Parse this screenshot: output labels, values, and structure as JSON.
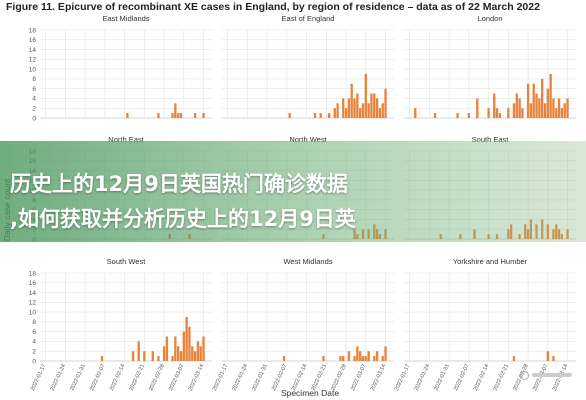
{
  "figure_title": "Figure 11. Epicurve of recombinant XE cases in England, by region of residence – data as of 22 March 2022",
  "overlay": {
    "line1": "历史上的12月9日英国热门确诊数据",
    "line2": ",如何获取并分析历史上的12月9日英"
  },
  "colors": {
    "bar": "#e8813a",
    "grid": "#e3e3e3",
    "axis": "#cccccc",
    "text": "#555555"
  },
  "chart_data": {
    "type": "bar",
    "ylabel": "Daily case count",
    "xlabel": "Specimen Date",
    "ylim": [
      0,
      18
    ],
    "yticks": [
      0,
      2,
      4,
      6,
      8,
      10,
      12,
      14,
      16,
      18
    ],
    "xticks": [
      "2022-01-17",
      "2022-01-24",
      "2022-01-31",
      "2022-02-07",
      "2022-02-14",
      "2022-02-21",
      "2022-02-28",
      "2022-03-07",
      "2022-03-14"
    ],
    "x_start": "2022-01-15",
    "x_end": "2022-03-17",
    "panels": [
      {
        "name": "East Midlands",
        "points": [
          {
            "date": "2022-02-15",
            "value": 1
          },
          {
            "date": "2022-02-26",
            "value": 1
          },
          {
            "date": "2022-03-03",
            "value": 1
          },
          {
            "date": "2022-03-04",
            "value": 3
          },
          {
            "date": "2022-03-05",
            "value": 1
          },
          {
            "date": "2022-03-06",
            "value": 1
          },
          {
            "date": "2022-03-11",
            "value": 1
          },
          {
            "date": "2022-03-14",
            "value": 1
          }
        ]
      },
      {
        "name": "East of England",
        "points": [
          {
            "date": "2022-02-08",
            "value": 1
          },
          {
            "date": "2022-02-17",
            "value": 1
          },
          {
            "date": "2022-02-19",
            "value": 1
          },
          {
            "date": "2022-02-22",
            "value": 1
          },
          {
            "date": "2022-02-24",
            "value": 2
          },
          {
            "date": "2022-02-25",
            "value": 3
          },
          {
            "date": "2022-02-27",
            "value": 4
          },
          {
            "date": "2022-02-28",
            "value": 2
          },
          {
            "date": "2022-03-01",
            "value": 4
          },
          {
            "date": "2022-03-02",
            "value": 7
          },
          {
            "date": "2022-03-03",
            "value": 4
          },
          {
            "date": "2022-03-04",
            "value": 5
          },
          {
            "date": "2022-03-05",
            "value": 2
          },
          {
            "date": "2022-03-06",
            "value": 3
          },
          {
            "date": "2022-03-07",
            "value": 9
          },
          {
            "date": "2022-03-08",
            "value": 3
          },
          {
            "date": "2022-03-09",
            "value": 5
          },
          {
            "date": "2022-03-10",
            "value": 5
          },
          {
            "date": "2022-03-11",
            "value": 4
          },
          {
            "date": "2022-03-12",
            "value": 2
          },
          {
            "date": "2022-03-13",
            "value": 3
          },
          {
            "date": "2022-03-14",
            "value": 6
          }
        ]
      },
      {
        "name": "London",
        "points": [
          {
            "date": "2022-01-19",
            "value": 2
          },
          {
            "date": "2022-01-26",
            "value": 1
          },
          {
            "date": "2022-02-03",
            "value": 1
          },
          {
            "date": "2022-02-07",
            "value": 1
          },
          {
            "date": "2022-02-10",
            "value": 4
          },
          {
            "date": "2022-02-14",
            "value": 2
          },
          {
            "date": "2022-02-16",
            "value": 5
          },
          {
            "date": "2022-02-17",
            "value": 2
          },
          {
            "date": "2022-02-18",
            "value": 1
          },
          {
            "date": "2022-02-21",
            "value": 2
          },
          {
            "date": "2022-02-23",
            "value": 3
          },
          {
            "date": "2022-02-24",
            "value": 5
          },
          {
            "date": "2022-02-25",
            "value": 4
          },
          {
            "date": "2022-02-26",
            "value": 2
          },
          {
            "date": "2022-02-28",
            "value": 7
          },
          {
            "date": "2022-03-01",
            "value": 3
          },
          {
            "date": "2022-03-02",
            "value": 7
          },
          {
            "date": "2022-03-03",
            "value": 5
          },
          {
            "date": "2022-03-04",
            "value": 4
          },
          {
            "date": "2022-03-05",
            "value": 8
          },
          {
            "date": "2022-03-06",
            "value": 3
          },
          {
            "date": "2022-03-07",
            "value": 6
          },
          {
            "date": "2022-03-08",
            "value": 9
          },
          {
            "date": "2022-03-09",
            "value": 4
          },
          {
            "date": "2022-03-10",
            "value": 2
          },
          {
            "date": "2022-03-11",
            "value": 4
          },
          {
            "date": "2022-03-12",
            "value": 2
          },
          {
            "date": "2022-03-13",
            "value": 3
          },
          {
            "date": "2022-03-14",
            "value": 4
          }
        ]
      },
      {
        "name": "North East",
        "points": [
          {
            "date": "2022-03-02",
            "value": 1
          },
          {
            "date": "2022-03-09",
            "value": 1
          }
        ]
      },
      {
        "name": "North West",
        "points": [
          {
            "date": "2022-02-20",
            "value": 1
          },
          {
            "date": "2022-03-03",
            "value": 2
          },
          {
            "date": "2022-03-04",
            "value": 1
          },
          {
            "date": "2022-03-06",
            "value": 2
          },
          {
            "date": "2022-03-08",
            "value": 2
          },
          {
            "date": "2022-03-10",
            "value": 3
          },
          {
            "date": "2022-03-11",
            "value": 2
          },
          {
            "date": "2022-03-12",
            "value": 1
          },
          {
            "date": "2022-03-14",
            "value": 2
          }
        ]
      },
      {
        "name": "South East",
        "points": [
          {
            "date": "2022-01-28",
            "value": 1
          },
          {
            "date": "2022-02-04",
            "value": 1
          },
          {
            "date": "2022-02-09",
            "value": 2
          },
          {
            "date": "2022-02-14",
            "value": 1
          },
          {
            "date": "2022-02-17",
            "value": 1
          },
          {
            "date": "2022-02-21",
            "value": 2
          },
          {
            "date": "2022-02-22",
            "value": 3
          },
          {
            "date": "2022-02-25",
            "value": 1
          },
          {
            "date": "2022-02-27",
            "value": 3
          },
          {
            "date": "2022-02-28",
            "value": 2
          },
          {
            "date": "2022-03-01",
            "value": 4
          },
          {
            "date": "2022-03-03",
            "value": 3
          },
          {
            "date": "2022-03-05",
            "value": 4
          },
          {
            "date": "2022-03-07",
            "value": 3
          },
          {
            "date": "2022-03-09",
            "value": 2
          },
          {
            "date": "2022-03-10",
            "value": 3
          },
          {
            "date": "2022-03-11",
            "value": 2
          },
          {
            "date": "2022-03-12",
            "value": 1
          },
          {
            "date": "2022-03-14",
            "value": 2
          }
        ]
      },
      {
        "name": "South West",
        "points": [
          {
            "date": "2022-02-06",
            "value": 1
          },
          {
            "date": "2022-02-17",
            "value": 2
          },
          {
            "date": "2022-02-19",
            "value": 4
          },
          {
            "date": "2022-02-21",
            "value": 2
          },
          {
            "date": "2022-02-24",
            "value": 2
          },
          {
            "date": "2022-02-26",
            "value": 1
          },
          {
            "date": "2022-02-28",
            "value": 3
          },
          {
            "date": "2022-03-01",
            "value": 5
          },
          {
            "date": "2022-03-03",
            "value": 1
          },
          {
            "date": "2022-03-04",
            "value": 5
          },
          {
            "date": "2022-03-05",
            "value": 3
          },
          {
            "date": "2022-03-06",
            "value": 2
          },
          {
            "date": "2022-03-07",
            "value": 6
          },
          {
            "date": "2022-03-08",
            "value": 9
          },
          {
            "date": "2022-03-09",
            "value": 7
          },
          {
            "date": "2022-03-10",
            "value": 3
          },
          {
            "date": "2022-03-11",
            "value": 2
          },
          {
            "date": "2022-03-12",
            "value": 4
          },
          {
            "date": "2022-03-13",
            "value": 3
          },
          {
            "date": "2022-03-14",
            "value": 5
          }
        ]
      },
      {
        "name": "West Midlands",
        "points": [
          {
            "date": "2022-02-06",
            "value": 1
          },
          {
            "date": "2022-02-20",
            "value": 1
          },
          {
            "date": "2022-02-26",
            "value": 1
          },
          {
            "date": "2022-02-27",
            "value": 1
          },
          {
            "date": "2022-03-01",
            "value": 2
          },
          {
            "date": "2022-03-03",
            "value": 1
          },
          {
            "date": "2022-03-04",
            "value": 3
          },
          {
            "date": "2022-03-05",
            "value": 2
          },
          {
            "date": "2022-03-06",
            "value": 1
          },
          {
            "date": "2022-03-07",
            "value": 1
          },
          {
            "date": "2022-03-08",
            "value": 2
          },
          {
            "date": "2022-03-10",
            "value": 1
          },
          {
            "date": "2022-03-11",
            "value": 2
          },
          {
            "date": "2022-03-13",
            "value": 1
          },
          {
            "date": "2022-03-14",
            "value": 3
          }
        ]
      },
      {
        "name": "Yorkshire and Humber",
        "points": [
          {
            "date": "2022-02-23",
            "value": 1
          },
          {
            "date": "2022-03-07",
            "value": 2
          },
          {
            "date": "2022-03-09",
            "value": 1
          }
        ]
      }
    ]
  }
}
